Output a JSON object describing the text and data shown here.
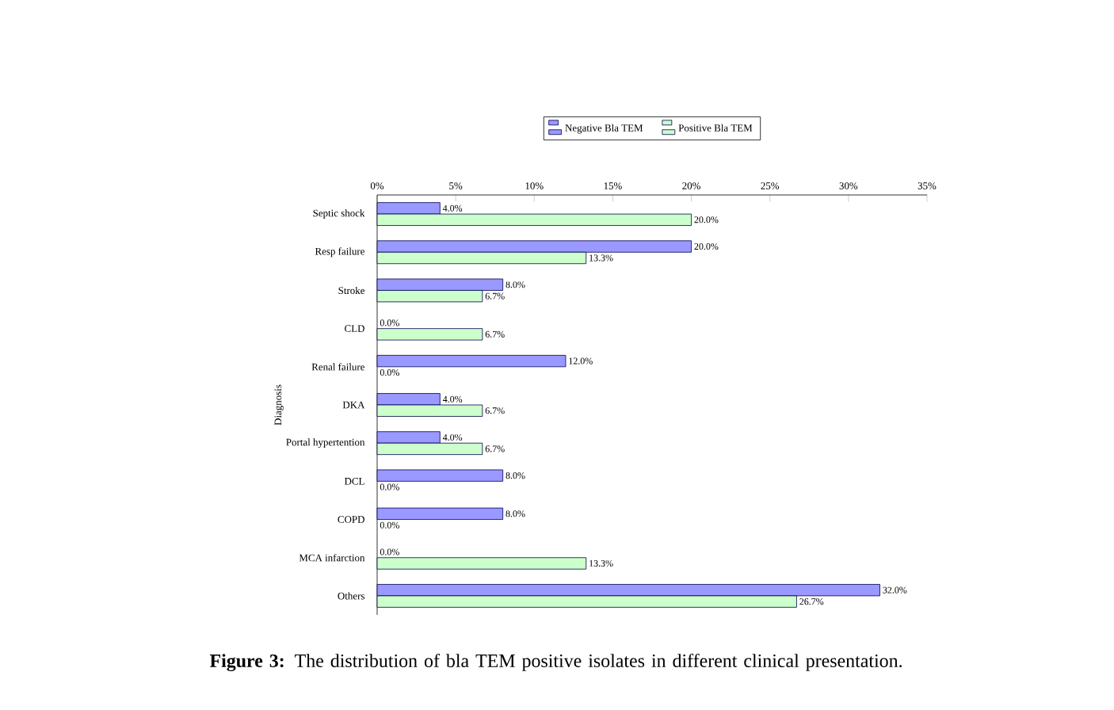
{
  "chart_data": {
    "type": "bar",
    "orientation": "horizontal",
    "ylabel": "Diagnosis",
    "legend": "top",
    "categories": [
      "Septic shock",
      "Resp failure",
      "Stroke",
      "CLD",
      "Renal failure",
      "DKA",
      "Portal hypertention",
      "DCL",
      "COPD",
      "MCA infarction",
      "Others"
    ],
    "series": [
      {
        "name": "Negative Bla TEM",
        "color": "#9999ff",
        "values": [
          4,
          20,
          8,
          0,
          12,
          4,
          4,
          8,
          8,
          0,
          32
        ],
        "value_labels": [
          "4.0%",
          "20.0%",
          "8.0%",
          "0.0%",
          "12.0%",
          "4.0%",
          "4.0%",
          "8.0%",
          "8.0%",
          "0.0%",
          "32.0%"
        ]
      },
      {
        "name": "Positive Bla TEM",
        "color": "#ccffcc",
        "values": [
          20,
          13.3,
          6.7,
          6.7,
          0,
          6.7,
          6.7,
          0,
          0,
          13.3,
          26.7
        ],
        "value_labels": [
          "20.0%",
          "13.3%",
          "6.7%",
          "6.7%",
          "0.0%",
          "6.7%",
          "6.7%",
          "0.0%",
          "0.0%",
          "13.3%",
          "26.7%"
        ]
      }
    ],
    "xlim": [
      0,
      35
    ],
    "xticks": [
      {
        "value": 0,
        "label": "0%"
      },
      {
        "value": 5,
        "label": "5%"
      },
      {
        "value": 10,
        "label": "10%"
      },
      {
        "value": 15,
        "label": "15%"
      },
      {
        "value": 20,
        "label": "20%"
      },
      {
        "value": 25,
        "label": "25%"
      },
      {
        "value": 30,
        "label": "30%"
      },
      {
        "value": 35,
        "label": "35%"
      }
    ],
    "annotations": [
      "**Figure 3:** The distribution of bla TEM positive isolates in different clinical presentation."
    ]
  }
}
